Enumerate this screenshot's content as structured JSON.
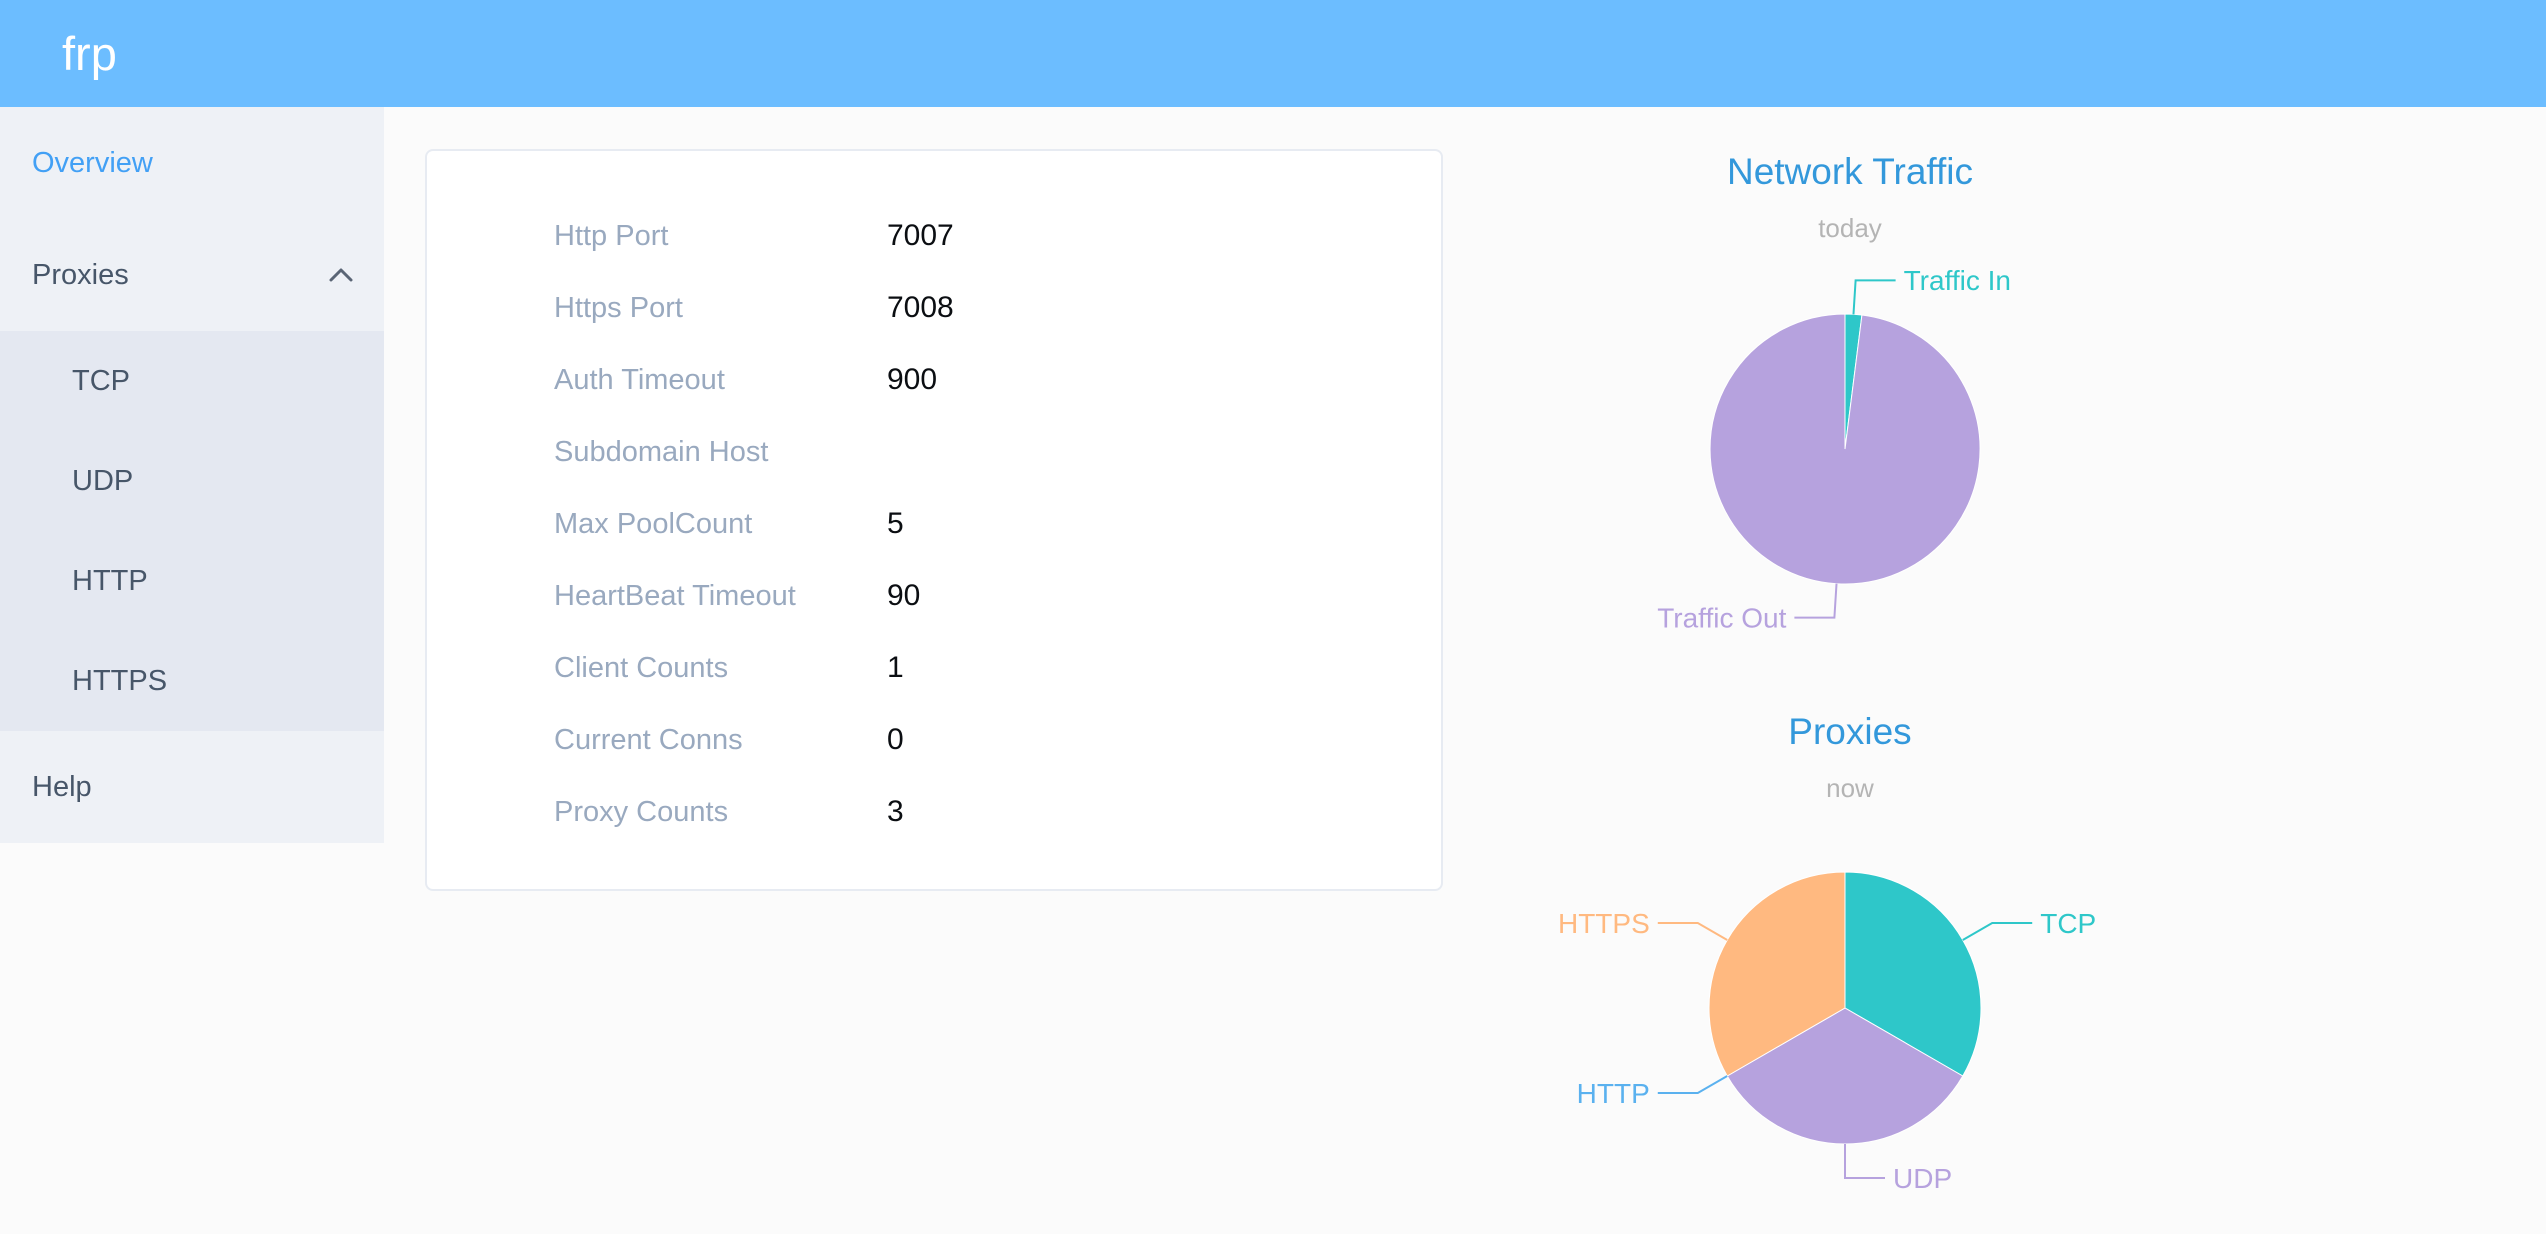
{
  "header": {
    "logo": "frp"
  },
  "sidebar": {
    "items": [
      {
        "label": "Overview",
        "active": true
      },
      {
        "label": "Proxies",
        "expanded": true,
        "children": [
          {
            "label": "TCP"
          },
          {
            "label": "UDP"
          },
          {
            "label": "HTTP"
          },
          {
            "label": "HTTPS"
          }
        ]
      },
      {
        "label": "Help"
      }
    ]
  },
  "overview": {
    "rows": [
      {
        "label": "Http Port",
        "value": "7007"
      },
      {
        "label": "Https Port",
        "value": "7008"
      },
      {
        "label": "Auth Timeout",
        "value": "900"
      },
      {
        "label": "Subdomain Host",
        "value": ""
      },
      {
        "label": "Max PoolCount",
        "value": "5"
      },
      {
        "label": "HeartBeat Timeout",
        "value": "90"
      },
      {
        "label": "Client Counts",
        "value": "1"
      },
      {
        "label": "Current Conns",
        "value": "0"
      },
      {
        "label": "Proxy Counts",
        "value": "3"
      }
    ]
  },
  "chart_data": [
    {
      "type": "pie",
      "title": "Network Traffic",
      "subtitle": "today",
      "legend_position": "none",
      "values_are": "estimated percent of circle arc",
      "slices": [
        {
          "label": "Traffic In",
          "value": 2,
          "color": "#2ec7c9"
        },
        {
          "label": "Traffic Out",
          "value": 98,
          "color": "#b6a2de"
        }
      ],
      "center": [
        345,
        319
      ],
      "radius": 135
    },
    {
      "type": "pie",
      "title": "Proxies",
      "subtitle": "now",
      "legend_position": "none",
      "values_are": "proxy counts by type",
      "slices": [
        {
          "label": "TCP",
          "value": 1,
          "color": "#2ec7c9"
        },
        {
          "label": "UDP",
          "value": 1,
          "color": "#b6a2de"
        },
        {
          "label": "HTTP",
          "value": 0,
          "color": "#5ab1ef"
        },
        {
          "label": "HTTPS",
          "value": 1,
          "color": "#ffb980"
        }
      ],
      "center": [
        345,
        318
      ],
      "radius": 136
    }
  ],
  "colors": {
    "header_bg": "#6cbdff",
    "logo_text": "#ffffff",
    "sidebar_bg": "#eef1f6",
    "submenu_bg": "#e4e8f1",
    "menu_text": "#475669",
    "menu_active": "#42a0f5",
    "page_bg": "#fbfbfb",
    "card_border": "#e7ebf2",
    "card_label": "#99a9bf",
    "card_value": "#0b0e12",
    "chart_title_blue": "#3398db",
    "chart_subtitle_gray": "#b4b4b4",
    "pie_teal": "#2ec7c9",
    "pie_purple": "#b6a2de",
    "pie_orange": "#ffb980",
    "pie_blue": "#5ab1ef"
  }
}
